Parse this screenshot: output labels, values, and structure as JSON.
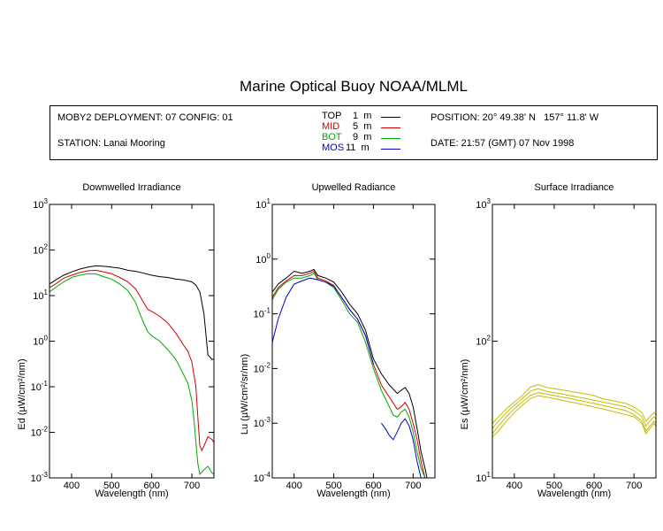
{
  "header": {
    "title": "Marine Optical Buoy NOAA/MLML",
    "deployment": "MOBY2 DEPLOYMENT: 07 CONFIG: 01",
    "station": "STATION: Lanai Mooring",
    "position": "POSITION: 20° 49.38' N   157° 11.8' W",
    "date": "DATE: 21:57 (GMT) 07 Nov 1998",
    "legend": [
      {
        "name": "TOP",
        "depth": "1  m",
        "color": "#000000"
      },
      {
        "name": "MID",
        "depth": "5  m",
        "color": "#cc0000"
      },
      {
        "name": "BOT",
        "depth": "9  m",
        "color": "#00aa00"
      },
      {
        "name": "MOS",
        "depth": "11  m",
        "color": "#0000cc"
      }
    ]
  },
  "chart_data": [
    {
      "type": "line",
      "title": "Downwelled Irradiance",
      "xlabel": "Wavelength (nm)",
      "ylabel": "Ed  (µW/cm²/nm)",
      "xlim": [
        345,
        755
      ],
      "ylim": [
        0.001,
        1000
      ],
      "yscale": "log",
      "xticks": [
        400,
        500,
        600,
        700
      ],
      "yticks": [
        "10-3",
        "10-2",
        "10-1",
        "100",
        "101",
        "102",
        "103"
      ],
      "series": [
        {
          "name": "TOP",
          "color": "#000000",
          "x": [
            345,
            360,
            380,
            400,
            420,
            440,
            460,
            480,
            500,
            520,
            540,
            560,
            580,
            600,
            620,
            640,
            660,
            680,
            700,
            710,
            720,
            730,
            740,
            750,
            755
          ],
          "y": [
            18,
            22,
            28,
            33,
            38,
            42,
            45,
            44,
            42,
            40,
            36,
            34,
            31,
            28,
            26,
            25,
            23,
            22,
            20,
            17,
            12,
            4,
            0.5,
            0.4,
            0.4
          ]
        },
        {
          "name": "MID",
          "color": "#cc0000",
          "x": [
            345,
            360,
            380,
            400,
            420,
            440,
            460,
            480,
            500,
            520,
            540,
            560,
            580,
            590,
            600,
            620,
            640,
            660,
            680,
            690,
            700,
            710,
            715,
            720,
            725,
            730,
            740,
            750,
            755
          ],
          "y": [
            15,
            18,
            24,
            28,
            32,
            35,
            36,
            33,
            30,
            25,
            20,
            14,
            7,
            5,
            4.5,
            3.5,
            2.5,
            1.5,
            0.8,
            0.6,
            0.35,
            0.1,
            0.02,
            0.005,
            0.004,
            0.005,
            0.008,
            0.007,
            0.006
          ]
        },
        {
          "name": "BOT",
          "color": "#00aa00",
          "x": [
            345,
            360,
            380,
            400,
            420,
            440,
            460,
            480,
            500,
            520,
            540,
            560,
            570,
            580,
            590,
            600,
            620,
            640,
            660,
            680,
            690,
            700,
            705,
            710,
            715,
            720,
            730,
            740,
            750,
            755
          ],
          "y": [
            12,
            15,
            20,
            25,
            28,
            30,
            30,
            26,
            23,
            18,
            13,
            7,
            4,
            2.5,
            1.6,
            1.3,
            1.0,
            0.65,
            0.4,
            0.18,
            0.12,
            0.05,
            0.02,
            0.006,
            0.002,
            0.0012,
            0.0015,
            0.0018,
            0.0013,
            0.0012
          ]
        }
      ]
    },
    {
      "type": "line",
      "title": "Upwelled Radiance",
      "xlabel": "Wavelength (nm)",
      "ylabel": "Lu  (µW/cm²/sr/nm)",
      "xlim": [
        345,
        755
      ],
      "ylim": [
        0.0001,
        10
      ],
      "yscale": "log",
      "xticks": [
        400,
        500,
        600,
        700
      ],
      "yticks": [
        "10-4",
        "10-3",
        "10-2",
        "10-1",
        "100",
        "101"
      ],
      "series": [
        {
          "name": "TOP",
          "color": "#000000",
          "x": [
            345,
            360,
            380,
            400,
            420,
            440,
            450,
            460,
            480,
            500,
            520,
            540,
            560,
            580,
            600,
            620,
            640,
            660,
            670,
            680,
            690,
            700,
            710,
            720,
            730,
            735
          ],
          "y": [
            0.25,
            0.35,
            0.45,
            0.6,
            0.55,
            0.6,
            0.65,
            0.5,
            0.45,
            0.38,
            0.25,
            0.15,
            0.1,
            0.05,
            0.015,
            0.008,
            0.005,
            0.0035,
            0.004,
            0.0045,
            0.0035,
            0.002,
            0.0008,
            0.0003,
            0.00015,
            0.0001
          ]
        },
        {
          "name": "MID",
          "color": "#cc0000",
          "x": [
            345,
            360,
            380,
            400,
            420,
            440,
            450,
            460,
            480,
            500,
            520,
            540,
            560,
            580,
            600,
            620,
            640,
            660,
            670,
            680,
            690,
            700,
            710,
            720,
            730,
            735
          ],
          "y": [
            0.2,
            0.3,
            0.4,
            0.5,
            0.5,
            0.55,
            0.6,
            0.45,
            0.4,
            0.33,
            0.2,
            0.12,
            0.08,
            0.04,
            0.012,
            0.005,
            0.003,
            0.0018,
            0.002,
            0.0024,
            0.0018,
            0.001,
            0.0005,
            0.0002,
            0.0001,
            0.0001
          ]
        },
        {
          "name": "BOT",
          "color": "#00aa00",
          "x": [
            345,
            360,
            380,
            400,
            420,
            440,
            450,
            460,
            480,
            500,
            520,
            540,
            560,
            580,
            600,
            620,
            640,
            650,
            660,
            670,
            680,
            690,
            700,
            710,
            720,
            730,
            735
          ],
          "y": [
            0.18,
            0.28,
            0.38,
            0.45,
            0.45,
            0.5,
            0.55,
            0.42,
            0.38,
            0.3,
            0.18,
            0.1,
            0.07,
            0.03,
            0.01,
            0.004,
            0.002,
            0.0014,
            0.0013,
            0.0016,
            0.0018,
            0.0013,
            0.0007,
            0.0003,
            0.00015,
            0.0001,
            0.0001
          ]
        },
        {
          "name": "MOS",
          "color": "#0000cc",
          "x": [
            345,
            360,
            380,
            400,
            420,
            440,
            460,
            480,
            500,
            520,
            540,
            560,
            580,
            600
          ],
          "y": [
            0.03,
            0.08,
            0.2,
            0.35,
            0.4,
            0.45,
            0.42,
            0.38,
            0.32,
            0.2,
            0.12,
            0.08,
            0.04,
            0.012
          ]
        },
        {
          "name": "MOS",
          "color": "#0000cc",
          "x": [
            620,
            630,
            640,
            650,
            660,
            670,
            680,
            690,
            700,
            710,
            720,
            730,
            735
          ],
          "y": [
            0.001,
            0.0008,
            0.0006,
            0.0005,
            0.0007,
            0.001,
            0.0012,
            0.0009,
            0.0005,
            0.0002,
            0.0001,
            0.0001,
            0.0001
          ]
        }
      ]
    },
    {
      "type": "line",
      "title": "Surface Irradiance",
      "xlabel": "Wavelength (nm)",
      "ylabel": "Es  (µW/cm²/nm)",
      "xlim": [
        345,
        755
      ],
      "ylim": [
        10,
        1000
      ],
      "yscale": "log",
      "xticks": [
        400,
        500,
        600,
        700
      ],
      "yticks": [
        "101",
        "102",
        "103"
      ],
      "series": [
        {
          "name": "Es",
          "color": "#c8bc00",
          "x": [
            345,
            360,
            380,
            400,
            420,
            440,
            460,
            480,
            500,
            520,
            540,
            560,
            580,
            600,
            620,
            640,
            660,
            680,
            700,
            720,
            730,
            740,
            750,
            755
          ],
          "y": [
            25,
            28,
            32,
            36,
            40,
            46,
            48,
            46,
            45,
            44,
            43,
            42,
            41,
            40,
            38,
            37,
            36,
            35,
            33,
            30,
            26,
            28,
            30,
            29
          ]
        },
        {
          "name": "Es",
          "color": "#c8bc00",
          "x": [
            345,
            360,
            380,
            400,
            420,
            440,
            460,
            480,
            500,
            520,
            540,
            560,
            580,
            600,
            620,
            640,
            660,
            680,
            700,
            720,
            730,
            740,
            750,
            755
          ],
          "y": [
            23,
            26,
            30,
            34,
            38,
            43,
            45,
            43,
            42,
            41,
            40,
            39,
            38,
            37,
            36,
            35,
            34,
            33,
            31,
            28,
            24,
            26,
            28,
            27
          ]
        },
        {
          "name": "Es",
          "color": "#c8bc00",
          "x": [
            345,
            360,
            380,
            400,
            420,
            440,
            460,
            480,
            500,
            520,
            540,
            560,
            580,
            600,
            620,
            640,
            660,
            680,
            700,
            720,
            730,
            740,
            750,
            755
          ],
          "y": [
            21,
            24,
            28,
            32,
            36,
            40,
            42,
            41,
            40,
            39,
            38,
            37,
            36,
            35,
            34,
            33,
            32,
            31,
            29,
            26,
            22,
            24,
            26,
            25
          ]
        },
        {
          "name": "Es",
          "color": "#c8bc00",
          "x": [
            345,
            360,
            380,
            400,
            420,
            440,
            460,
            480,
            500,
            520,
            540,
            560,
            580,
            600,
            620,
            640,
            660,
            680,
            700,
            720,
            730,
            740,
            750,
            755
          ],
          "y": [
            20,
            22,
            26,
            30,
            34,
            38,
            40,
            39,
            38,
            37,
            36,
            35,
            34,
            33,
            32,
            31,
            30,
            29,
            28,
            25,
            21,
            23,
            25,
            24
          ]
        }
      ]
    }
  ]
}
